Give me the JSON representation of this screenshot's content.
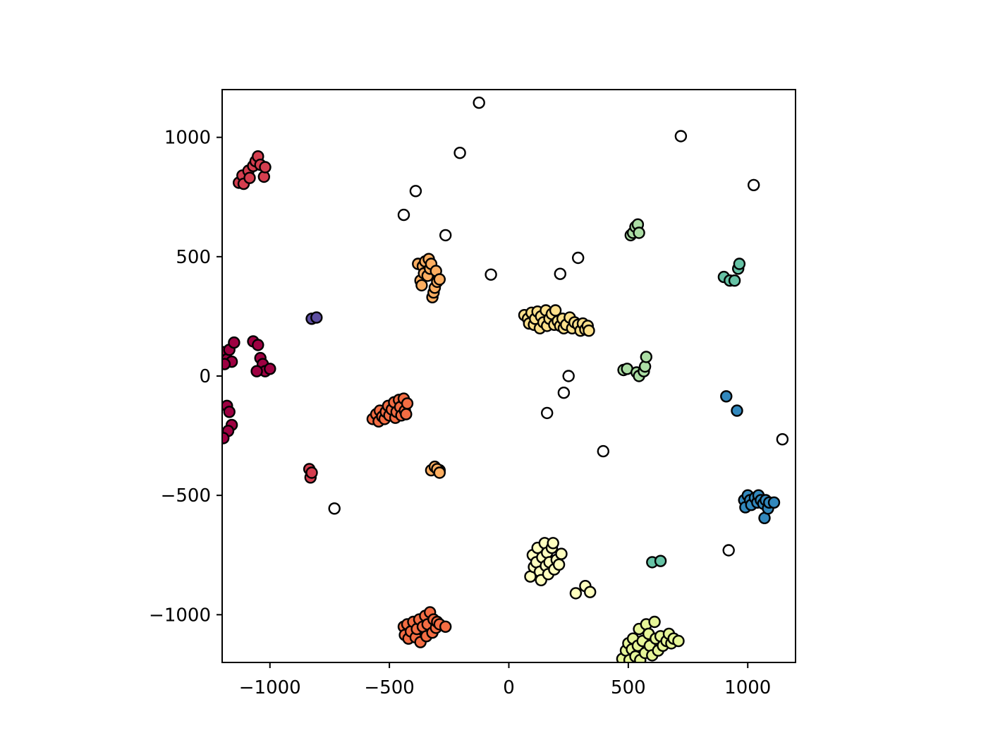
{
  "chart_data": {
    "type": "scatter",
    "title": "",
    "xlabel": "",
    "ylabel": "",
    "xlim": [
      -1200,
      1200
    ],
    "ylim": [
      -1200,
      1200
    ],
    "grid": false,
    "x_ticks": [
      -1000,
      -500,
      0,
      500,
      1000
    ],
    "y_ticks": [
      -1000,
      -500,
      0,
      500,
      1000
    ],
    "x_tick_labels": [
      "−1000",
      "−500",
      "0",
      "500",
      "1000"
    ],
    "y_tick_labels": [
      "−1000",
      "−500",
      "0",
      "500",
      "1000"
    ],
    "series": [
      {
        "color": "#ffffff",
        "points": [
          [
            -125,
            1145
          ],
          [
            -205,
            935
          ],
          [
            -390,
            775
          ],
          [
            -440,
            675
          ],
          [
            -265,
            590
          ],
          [
            -75,
            425
          ],
          [
            215,
            428
          ],
          [
            290,
            495
          ],
          [
            720,
            1005
          ],
          [
            1025,
            800
          ],
          [
            250,
            0
          ],
          [
            230,
            -70
          ],
          [
            160,
            -155
          ],
          [
            395,
            -315
          ],
          [
            1145,
            -265
          ],
          [
            -730,
            -555
          ],
          [
            920,
            -730
          ],
          [
            -290,
            -395
          ]
        ]
      },
      {
        "color": "#9e0142",
        "points": [
          [
            -1195,
            100
          ],
          [
            -1180,
            70
          ],
          [
            -1170,
            110
          ],
          [
            -1160,
            60
          ],
          [
            -1150,
            140
          ],
          [
            -1190,
            50
          ],
          [
            -1070,
            145
          ],
          [
            -1050,
            130
          ],
          [
            -1040,
            75
          ],
          [
            -1030,
            50
          ],
          [
            -1020,
            20
          ],
          [
            -1055,
            20
          ],
          [
            -1000,
            30
          ],
          [
            -1180,
            -125
          ],
          [
            -1170,
            -150
          ],
          [
            -1160,
            -205
          ],
          [
            -1175,
            -230
          ],
          [
            -1195,
            -260
          ]
        ]
      },
      {
        "color": "#d53e4f",
        "points": [
          [
            -1130,
            810
          ],
          [
            -1115,
            840
          ],
          [
            -1110,
            805
          ],
          [
            -1090,
            860
          ],
          [
            -1085,
            830
          ],
          [
            -1070,
            880
          ],
          [
            -1060,
            900
          ],
          [
            -1050,
            920
          ],
          [
            -1040,
            885
          ],
          [
            -1025,
            835
          ],
          [
            -1020,
            875
          ],
          [
            -835,
            -390
          ],
          [
            -830,
            -425
          ],
          [
            -825,
            -405
          ]
        ]
      },
      {
        "color": "#f46d43",
        "points": [
          [
            -570,
            -180
          ],
          [
            -555,
            -160
          ],
          [
            -545,
            -190
          ],
          [
            -540,
            -145
          ],
          [
            -530,
            -170
          ],
          [
            -520,
            -180
          ],
          [
            -515,
            -150
          ],
          [
            -505,
            -125
          ],
          [
            -500,
            -165
          ],
          [
            -490,
            -140
          ],
          [
            -480,
            -110
          ],
          [
            -475,
            -175
          ],
          [
            -470,
            -150
          ],
          [
            -460,
            -100
          ],
          [
            -455,
            -130
          ],
          [
            -450,
            -165
          ],
          [
            -440,
            -95
          ],
          [
            -435,
            -145
          ],
          [
            -430,
            -160
          ],
          [
            -425,
            -115
          ],
          [
            -440,
            -1050
          ],
          [
            -435,
            -1085
          ],
          [
            -425,
            -1040
          ],
          [
            -420,
            -1100
          ],
          [
            -410,
            -1070
          ],
          [
            -400,
            -1030
          ],
          [
            -390,
            -1095
          ],
          [
            -385,
            -1060
          ],
          [
            -375,
            -1020
          ],
          [
            -370,
            -1115
          ],
          [
            -360,
            -1050
          ],
          [
            -350,
            -1005
          ],
          [
            -345,
            -1090
          ],
          [
            -340,
            -1040
          ],
          [
            -330,
            -990
          ],
          [
            -320,
            -1075
          ],
          [
            -315,
            -1020
          ],
          [
            -305,
            -1055
          ],
          [
            -300,
            -1030
          ],
          [
            -290,
            -1040
          ],
          [
            -265,
            -1050
          ]
        ]
      },
      {
        "color": "#fdae61",
        "points": [
          [
            -380,
            470
          ],
          [
            -370,
            400
          ],
          [
            -365,
            380
          ],
          [
            -360,
            460
          ],
          [
            -355,
            430
          ],
          [
            -350,
            480
          ],
          [
            -340,
            420
          ],
          [
            -335,
            490
          ],
          [
            -330,
            450
          ],
          [
            -325,
            470
          ],
          [
            -320,
            330
          ],
          [
            -315,
            350
          ],
          [
            -310,
            370
          ],
          [
            -305,
            440
          ],
          [
            -300,
            395
          ],
          [
            -290,
            405
          ],
          [
            -325,
            -395
          ],
          [
            -310,
            -380
          ],
          [
            -300,
            -390
          ],
          [
            -290,
            -405
          ]
        ]
      },
      {
        "color": "#fee08b",
        "points": [
          [
            65,
            255
          ],
          [
            80,
            240
          ],
          [
            85,
            220
          ],
          [
            95,
            265
          ],
          [
            105,
            215
          ],
          [
            110,
            240
          ],
          [
            120,
            270
          ],
          [
            130,
            200
          ],
          [
            135,
            250
          ],
          [
            145,
            225
          ],
          [
            155,
            275
          ],
          [
            160,
            210
          ],
          [
            170,
            240
          ],
          [
            180,
            260
          ],
          [
            190,
            215
          ],
          [
            195,
            275
          ],
          [
            205,
            230
          ],
          [
            215,
            210
          ],
          [
            225,
            240
          ],
          [
            230,
            200
          ],
          [
            240,
            215
          ],
          [
            255,
            245
          ],
          [
            265,
            200
          ],
          [
            275,
            225
          ],
          [
            290,
            215
          ],
          [
            300,
            190
          ],
          [
            310,
            220
          ],
          [
            320,
            195
          ],
          [
            330,
            210
          ],
          [
            335,
            190
          ]
        ]
      },
      {
        "color": "#ffffbf",
        "points": [
          [
            90,
            -840
          ],
          [
            100,
            -750
          ],
          [
            105,
            -800
          ],
          [
            115,
            -780
          ],
          [
            120,
            -720
          ],
          [
            130,
            -820
          ],
          [
            135,
            -855
          ],
          [
            140,
            -760
          ],
          [
            150,
            -700
          ],
          [
            155,
            -795
          ],
          [
            160,
            -740
          ],
          [
            165,
            -830
          ],
          [
            170,
            -780
          ],
          [
            180,
            -720
          ],
          [
            185,
            -700
          ],
          [
            190,
            -810
          ],
          [
            200,
            -770
          ],
          [
            210,
            -790
          ],
          [
            220,
            -745
          ],
          [
            280,
            -910
          ],
          [
            320,
            -880
          ],
          [
            340,
            -905
          ]
        ]
      },
      {
        "color": "#e6f598",
        "points": [
          [
            475,
            -1185
          ],
          [
            490,
            -1150
          ],
          [
            500,
            -1120
          ],
          [
            505,
            -1190
          ],
          [
            515,
            -1145
          ],
          [
            520,
            -1100
          ],
          [
            530,
            -1175
          ],
          [
            540,
            -1130
          ],
          [
            545,
            -1060
          ],
          [
            550,
            -1190
          ],
          [
            560,
            -1110
          ],
          [
            570,
            -1160
          ],
          [
            575,
            -1040
          ],
          [
            585,
            -1080
          ],
          [
            590,
            -1130
          ],
          [
            600,
            -1170
          ],
          [
            610,
            -1030
          ],
          [
            615,
            -1100
          ],
          [
            625,
            -1150
          ],
          [
            635,
            -1090
          ],
          [
            645,
            -1130
          ],
          [
            660,
            -1110
          ],
          [
            670,
            -1080
          ],
          [
            680,
            -1120
          ],
          [
            690,
            -1100
          ],
          [
            710,
            -1110
          ]
        ]
      },
      {
        "color": "#abdda4",
        "points": [
          [
            510,
            590
          ],
          [
            520,
            600
          ],
          [
            530,
            625
          ],
          [
            540,
            635
          ],
          [
            545,
            600
          ],
          [
            480,
            25
          ],
          [
            495,
            30
          ],
          [
            535,
            15
          ],
          [
            545,
            0
          ],
          [
            565,
            20
          ],
          [
            570,
            40
          ],
          [
            575,
            80
          ]
        ]
      },
      {
        "color": "#66c2a5",
        "points": [
          [
            900,
            415
          ],
          [
            925,
            400
          ],
          [
            945,
            400
          ],
          [
            960,
            450
          ],
          [
            965,
            470
          ],
          [
            600,
            -780
          ],
          [
            635,
            -775
          ]
        ]
      },
      {
        "color": "#3288bd",
        "points": [
          [
            910,
            -85
          ],
          [
            955,
            -145
          ],
          [
            985,
            -520
          ],
          [
            990,
            -550
          ],
          [
            1000,
            -500
          ],
          [
            1010,
            -520
          ],
          [
            1015,
            -540
          ],
          [
            1030,
            -510
          ],
          [
            1040,
            -530
          ],
          [
            1045,
            -500
          ],
          [
            1055,
            -520
          ],
          [
            1065,
            -535
          ],
          [
            1070,
            -595
          ],
          [
            1075,
            -520
          ],
          [
            1085,
            -555
          ],
          [
            1090,
            -530
          ],
          [
            1110,
            -530
          ]
        ]
      },
      {
        "color": "#5e4fa2",
        "points": [
          [
            -825,
            240
          ],
          [
            -805,
            245
          ]
        ]
      }
    ]
  }
}
